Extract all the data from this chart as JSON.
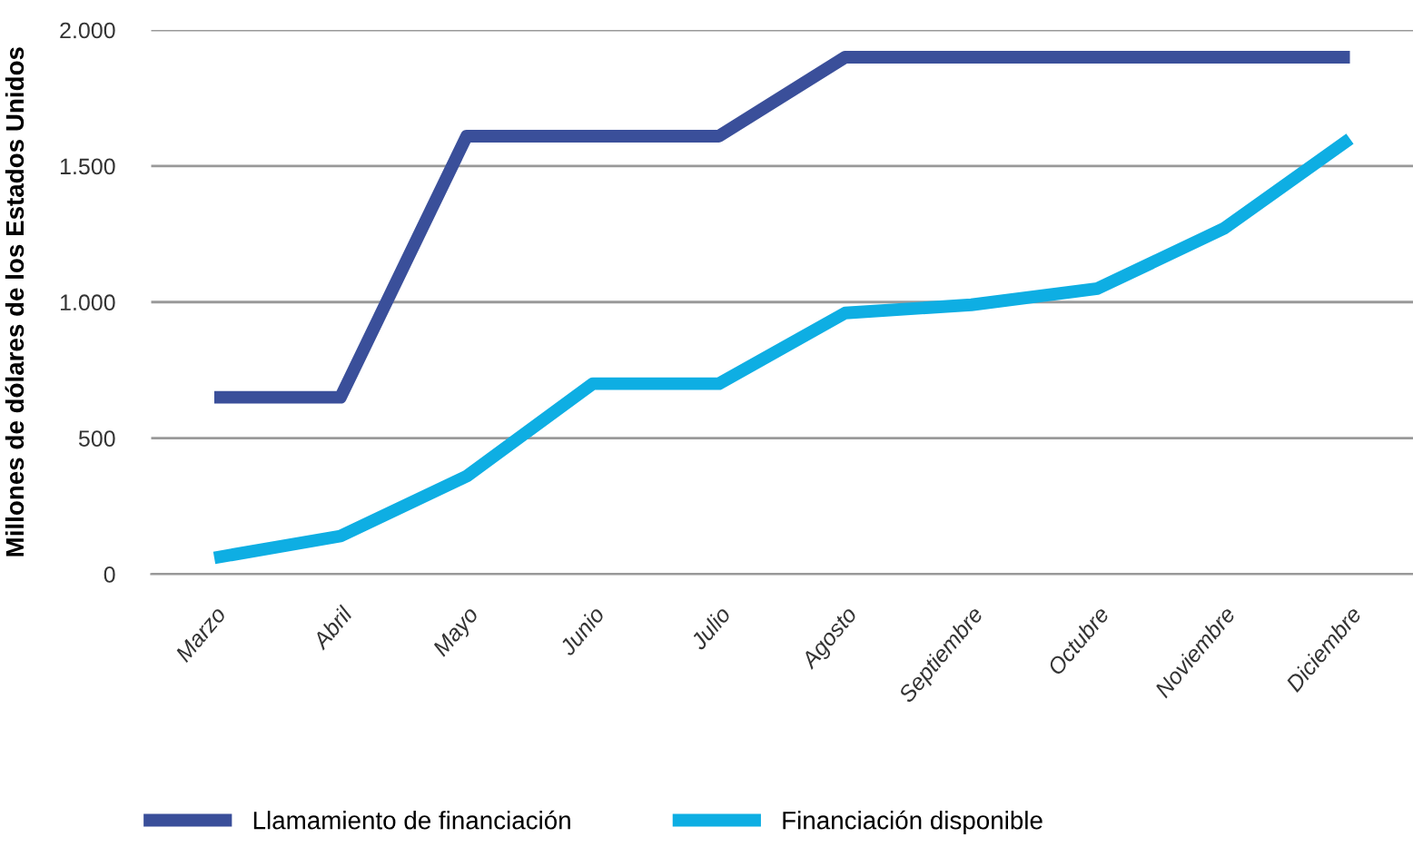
{
  "chart_data": {
    "type": "line",
    "ylabel": "Millones de dólares de los Estados Unidos",
    "categories": [
      "Marzo",
      "Abril",
      "Mayo",
      "Junio",
      "Julio",
      "Agosto",
      "Septiembre",
      "Octubre",
      "Noviembre",
      "Diciembre"
    ],
    "series": [
      {
        "name": "Llamamiento de financiación",
        "color": "#3a4f9a",
        "values": [
          650,
          650,
          1610,
          1610,
          1610,
          1900,
          1900,
          1900,
          1900,
          1900
        ]
      },
      {
        "name": "Financiación disponible",
        "color": "#0eaee3",
        "values": [
          60,
          140,
          360,
          700,
          700,
          960,
          990,
          1050,
          1270,
          1600
        ]
      }
    ],
    "ylim": [
      0,
      2000
    ],
    "yticks": [
      0,
      500,
      {
        "value": 1000,
        "label": "1.000"
      },
      {
        "value": 1500,
        "label": "1.500"
      },
      {
        "value": 2000,
        "label": "2.000"
      }
    ],
    "grid": "y",
    "legend": "bottom",
    "marker": "none",
    "line_style": "solid"
  }
}
